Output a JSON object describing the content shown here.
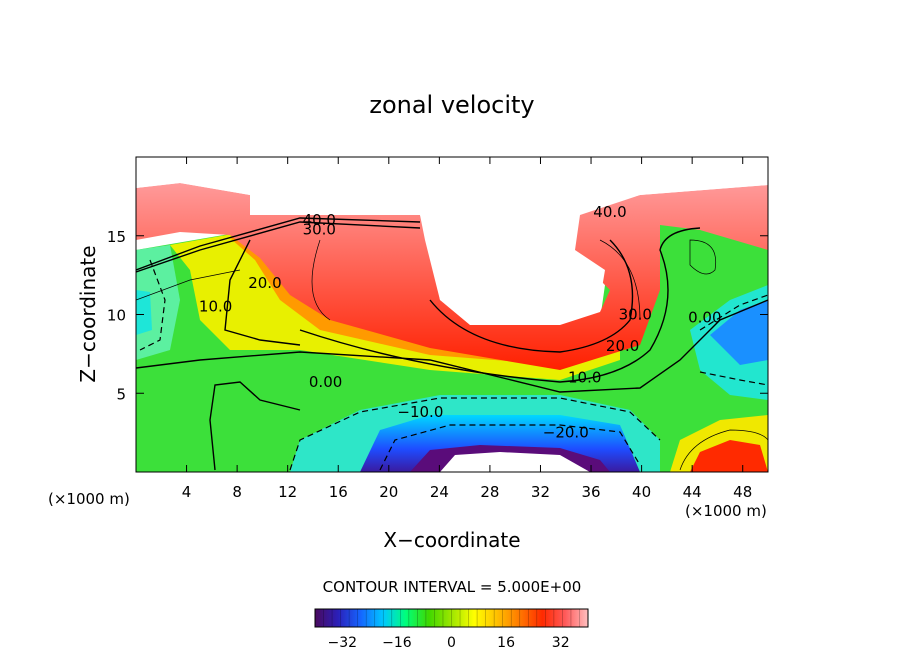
{
  "chart_data": {
    "type": "heatmap",
    "title": "zonal velocity",
    "xlabel": "X−coordinate",
    "ylabel": "Z−coordinate",
    "x_unit_label": "(×1000 m)",
    "z_unit_label": "(×1000 m)",
    "xlim": [
      0,
      50
    ],
    "ylim": [
      0,
      20
    ],
    "x_ticks": [
      4,
      8,
      12,
      16,
      20,
      24,
      28,
      32,
      36,
      40,
      44,
      48
    ],
    "y_ticks": [
      5,
      10,
      15
    ],
    "contour_interval_label": "CONTOUR INTERVAL = 5.000E+00",
    "colorbar": {
      "range": [
        -40,
        40
      ],
      "ticks": [
        -32,
        -16,
        0,
        16,
        32
      ],
      "colors": [
        "#4a0a5e",
        "#2b1fb8",
        "#1565ff",
        "#00c8ff",
        "#00ff7a",
        "#3fd800",
        "#9ee600",
        "#ffff00",
        "#ffc000",
        "#ff7800",
        "#ff2a00",
        "#ff5a5a",
        "#ffc0c0"
      ]
    },
    "contour_labels": [
      {
        "text": "40.0",
        "x": 14.5,
        "z": 16.0
      },
      {
        "text": "30.0",
        "x": 14.5,
        "z": 15.4
      },
      {
        "text": "20.0",
        "x": 10.2,
        "z": 12.0
      },
      {
        "text": "10.0",
        "x": 6.3,
        "z": 10.5
      },
      {
        "text": "0.00",
        "x": 15.0,
        "z": 5.7
      },
      {
        "text": "−10.0",
        "x": 22.5,
        "z": 3.8
      },
      {
        "text": "−20.0",
        "x": 34.0,
        "z": 2.5
      },
      {
        "text": "10.0",
        "x": 35.5,
        "z": 6.0
      },
      {
        "text": "20.0",
        "x": 38.5,
        "z": 8.0
      },
      {
        "text": "30.0",
        "x": 39.5,
        "z": 10.0
      },
      {
        "text": "40.0",
        "x": 37.5,
        "z": 16.5
      },
      {
        "text": "0.00",
        "x": 45.0,
        "z": 9.8
      }
    ]
  }
}
